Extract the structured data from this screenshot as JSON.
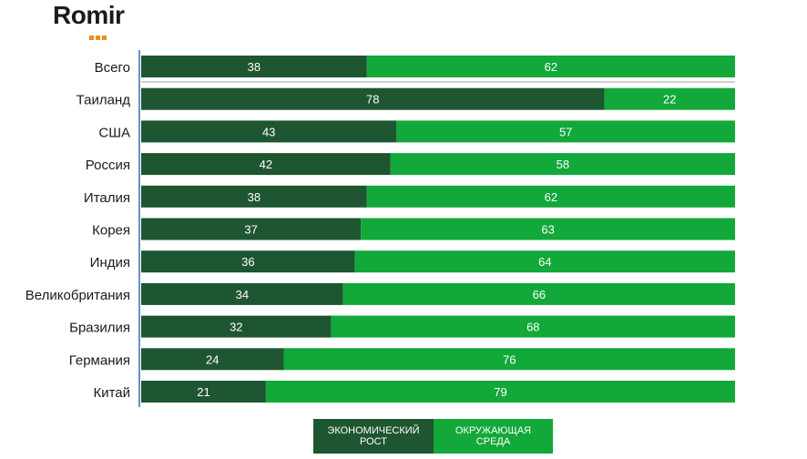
{
  "logo": {
    "text": "Romir",
    "accent_color": "#f08c1e"
  },
  "chart_data": {
    "type": "bar",
    "orientation": "horizontal",
    "stacked": "percent",
    "categories": [
      "Всего",
      "Таиланд",
      "США",
      "Россия",
      "Италия",
      "Корея",
      "Индия",
      "Великобритания",
      "Бразилия",
      "Германия",
      "Китай"
    ],
    "series": [
      {
        "name": "ЭКОНОМИЧЕСКИЙ РОСТ",
        "color": "#1e5631",
        "values": [
          38,
          78,
          43,
          42,
          38,
          37,
          36,
          34,
          32,
          24,
          21
        ]
      },
      {
        "name": "ОКРУЖАЮЩАЯ СРЕДА",
        "color": "#12a83a",
        "values": [
          62,
          22,
          57,
          58,
          62,
          63,
          64,
          66,
          68,
          76,
          79
        ]
      }
    ],
    "xlim": [
      0,
      100
    ],
    "grid": false,
    "legend_position": "bottom"
  }
}
